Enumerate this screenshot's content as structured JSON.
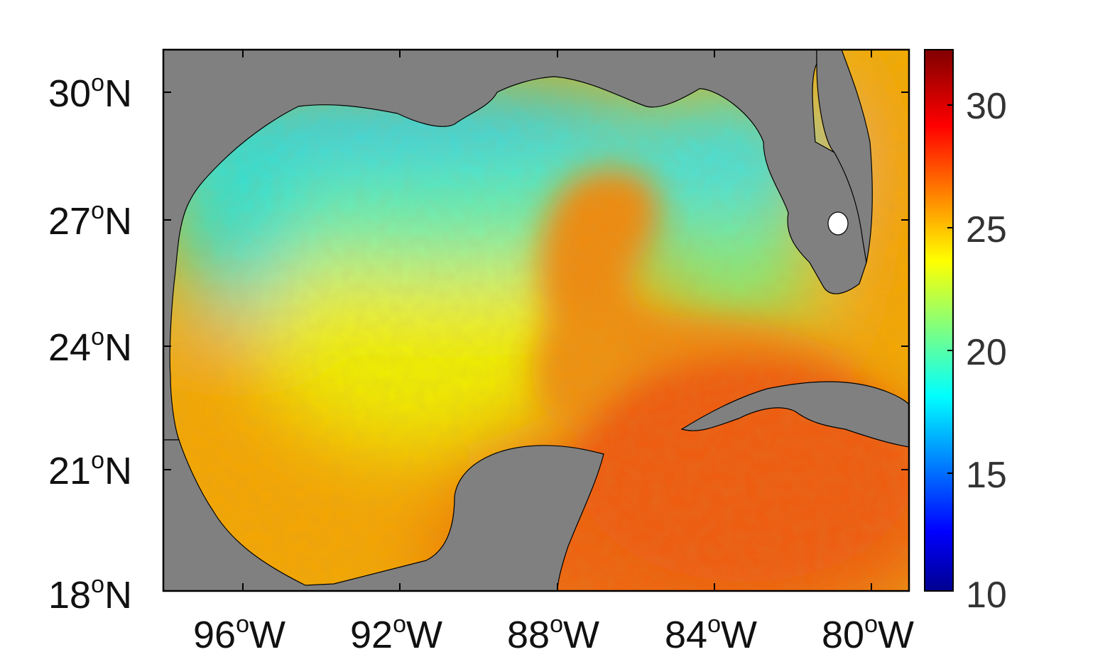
{
  "map": {
    "lat_ticks": [
      {
        "deg": "30",
        "sym": "o",
        "hemi": "N"
      },
      {
        "deg": "27",
        "sym": "o",
        "hemi": "N"
      },
      {
        "deg": "24",
        "sym": "o",
        "hemi": "N"
      },
      {
        "deg": "21",
        "sym": "o",
        "hemi": "N"
      },
      {
        "deg": "18",
        "sym": "o",
        "hemi": "N"
      }
    ],
    "lon_ticks": [
      {
        "deg": "96",
        "sym": "o",
        "hemi": "W"
      },
      {
        "deg": "92",
        "sym": "o",
        "hemi": "W"
      },
      {
        "deg": "88",
        "sym": "o",
        "hemi": "W"
      },
      {
        "deg": "84",
        "sym": "o",
        "hemi": "W"
      },
      {
        "deg": "80",
        "sym": "o",
        "hemi": "W"
      }
    ],
    "land_color": "#808080",
    "coast_color": "#000000"
  },
  "colorbar": {
    "min": 10,
    "max": 32,
    "tick_labels": [
      "30",
      "25",
      "20",
      "15",
      "10"
    ],
    "colormap": "jet"
  }
}
